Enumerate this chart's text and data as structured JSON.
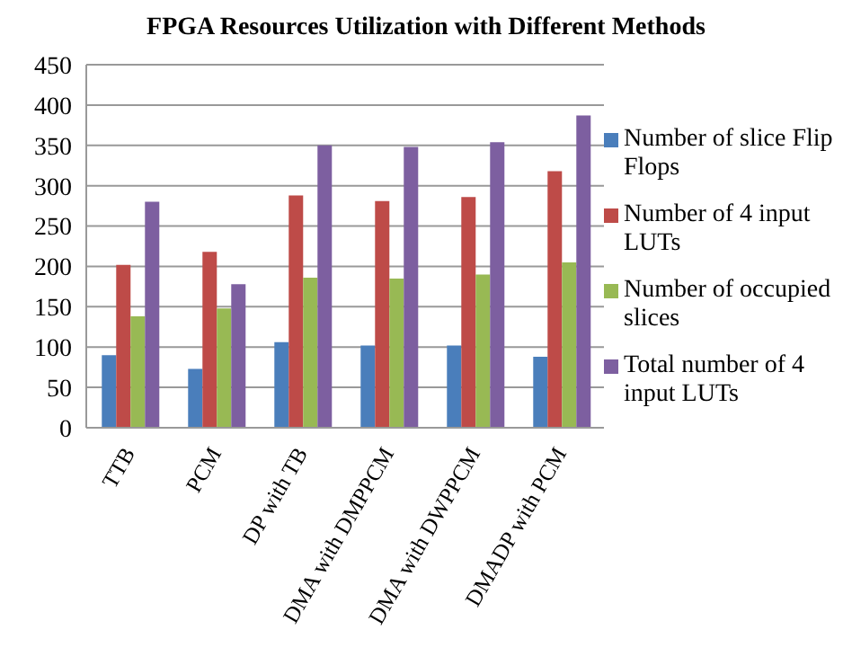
{
  "chart_data": {
    "type": "bar",
    "title": "FPGA Resources Utilization with Different Methods",
    "categories": [
      "TTB",
      "PCM",
      "DP with TB",
      "DMA with DMPPCM",
      "DMA with DWPPCM",
      "DMADP with PCM"
    ],
    "series": [
      {
        "name": "Number of slice Flip Flops",
        "color": "#4a7ebb",
        "values": [
          90,
          73,
          106,
          102,
          102,
          88
        ]
      },
      {
        "name": "Number of 4 input LUTs",
        "color": "#be4b48",
        "values": [
          202,
          218,
          288,
          281,
          286,
          318
        ]
      },
      {
        "name": "Number of occupied slices",
        "color": "#98b954",
        "values": [
          138,
          148,
          186,
          185,
          190,
          205
        ]
      },
      {
        "name": "Total number of 4 input LUTs",
        "color": "#7d5fa0",
        "values": [
          280,
          178,
          350,
          348,
          354,
          387
        ]
      }
    ],
    "ylim": [
      0,
      450
    ],
    "yticks": [
      0,
      50,
      100,
      150,
      200,
      250,
      300,
      350,
      400,
      450
    ],
    "grid": "y",
    "legend": "right"
  }
}
